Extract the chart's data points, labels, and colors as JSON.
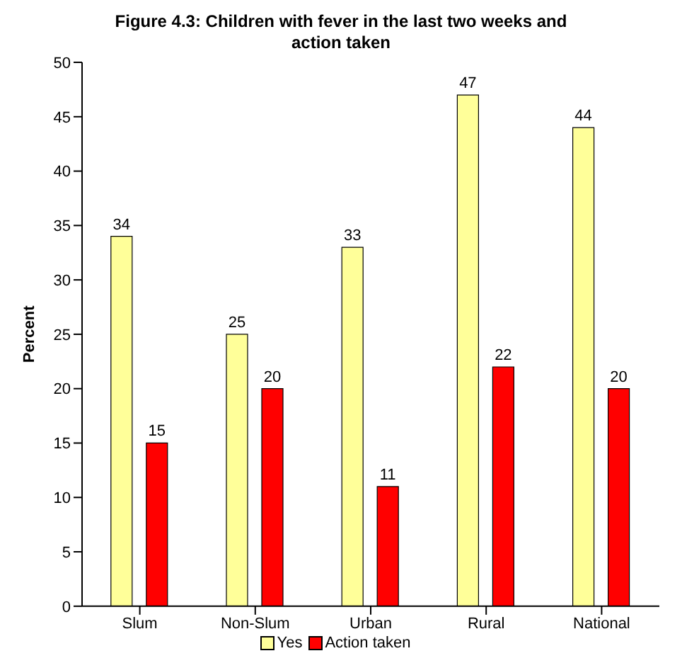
{
  "chart_data": {
    "type": "bar",
    "title": "Figure 4.3: Children with fever in the last two weeks and action taken",
    "ylabel": "Percent",
    "categories": [
      "Slum",
      "Non-Slum",
      "Urban",
      "Rural",
      "National"
    ],
    "series": [
      {
        "name": "Yes",
        "color": "#ffff99",
        "values": [
          34,
          25,
          33,
          47,
          44
        ]
      },
      {
        "name": "Action taken",
        "color": "#ff0000",
        "values": [
          15,
          20,
          11,
          22,
          20
        ]
      }
    ],
    "ylim": [
      0,
      50
    ],
    "yticks": [
      0,
      5,
      10,
      15,
      20,
      25,
      30,
      35,
      40,
      45,
      50
    ],
    "grid": false,
    "legend": "bottom",
    "data_labels": true
  }
}
